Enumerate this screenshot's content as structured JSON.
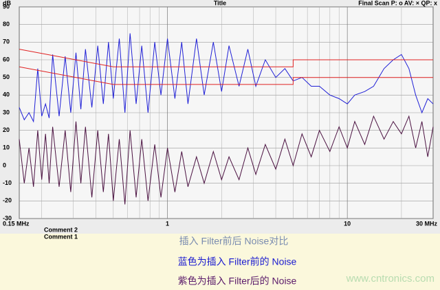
{
  "chart_data": {
    "type": "line",
    "title": "Title",
    "y_label": "dB",
    "header_right": "Final Scan P: o  AV: ×  QP: x",
    "comments": [
      "Comment 2",
      "Comment 1"
    ],
    "captions": [
      "插入 Filter前后 Noise对比",
      "蓝色为插入 Filter前的  Noise",
      "紫色为插入  Filter后的  Noise"
    ],
    "watermark": "www.cntronics.com",
    "xscale": "log",
    "grid": true,
    "xlim": [
      0.15,
      30
    ],
    "ylim": [
      -30,
      90
    ],
    "xticks": [
      {
        "value": 0.15,
        "label": "0.15 MHz"
      },
      1,
      10,
      {
        "value": 30,
        "label": "30 MHz"
      }
    ],
    "xminorticks": [
      0.2,
      0.3,
      0.4,
      0.5,
      0.6,
      0.7,
      0.8,
      0.9,
      2,
      3,
      4,
      5,
      6,
      7,
      8,
      9,
      20
    ],
    "yticks": [
      -30,
      -20,
      -10,
      0,
      10,
      20,
      30,
      40,
      50,
      60,
      70,
      80,
      90
    ],
    "x": [
      0.15,
      0.16,
      0.17,
      0.18,
      0.19,
      0.2,
      0.21,
      0.22,
      0.23,
      0.25,
      0.27,
      0.29,
      0.31,
      0.33,
      0.35,
      0.38,
      0.41,
      0.44,
      0.47,
      0.5,
      0.54,
      0.58,
      0.62,
      0.67,
      0.72,
      0.78,
      0.85,
      0.92,
      1,
      1.1,
      1.2,
      1.3,
      1.45,
      1.6,
      1.8,
      2,
      2.2,
      2.5,
      2.8,
      3.1,
      3.5,
      4,
      4.5,
      5,
      5.6,
      6.3,
      7,
      8,
      9,
      10,
      11,
      12.5,
      14,
      16,
      18,
      20,
      22,
      24,
      26,
      28,
      30
    ],
    "series": [
      {
        "color": "#1f1fd6",
        "values": [
          33,
          26,
          30,
          25,
          55,
          28,
          35,
          27,
          63,
          28,
          62,
          30,
          64,
          32,
          66,
          33,
          68,
          35,
          70,
          38,
          72,
          30,
          75,
          35,
          68,
          30,
          70,
          40,
          72,
          38,
          70,
          35,
          72,
          40,
          70,
          42,
          68,
          45,
          66,
          45,
          60,
          50,
          55,
          48,
          50,
          45,
          45,
          40,
          38,
          35,
          40,
          42,
          45,
          55,
          60,
          63,
          55,
          40,
          30,
          38,
          35
        ]
      },
      {
        "color": "#4a1040",
        "values": [
          15,
          -10,
          10,
          -12,
          20,
          -8,
          18,
          -10,
          22,
          -12,
          20,
          -15,
          25,
          -10,
          22,
          -18,
          20,
          -15,
          18,
          -20,
          15,
          -22,
          20,
          -18,
          15,
          -20,
          12,
          -18,
          10,
          -15,
          8,
          -12,
          5,
          -10,
          8,
          -8,
          5,
          -8,
          10,
          -5,
          12,
          -2,
          15,
          0,
          18,
          5,
          20,
          8,
          22,
          10,
          25,
          12,
          28,
          15,
          25,
          18,
          28,
          10,
          25,
          5,
          22
        ]
      }
    ],
    "limit_lines": [
      {
        "color": "#e02020",
        "x": [
          0.15,
          0.5,
          5,
          5,
          30
        ],
        "values": [
          66,
          56,
          56,
          60,
          60
        ]
      },
      {
        "color": "#e02020",
        "x": [
          0.15,
          0.5,
          5,
          5,
          30
        ],
        "values": [
          56,
          46,
          46,
          50,
          50
        ]
      }
    ]
  }
}
